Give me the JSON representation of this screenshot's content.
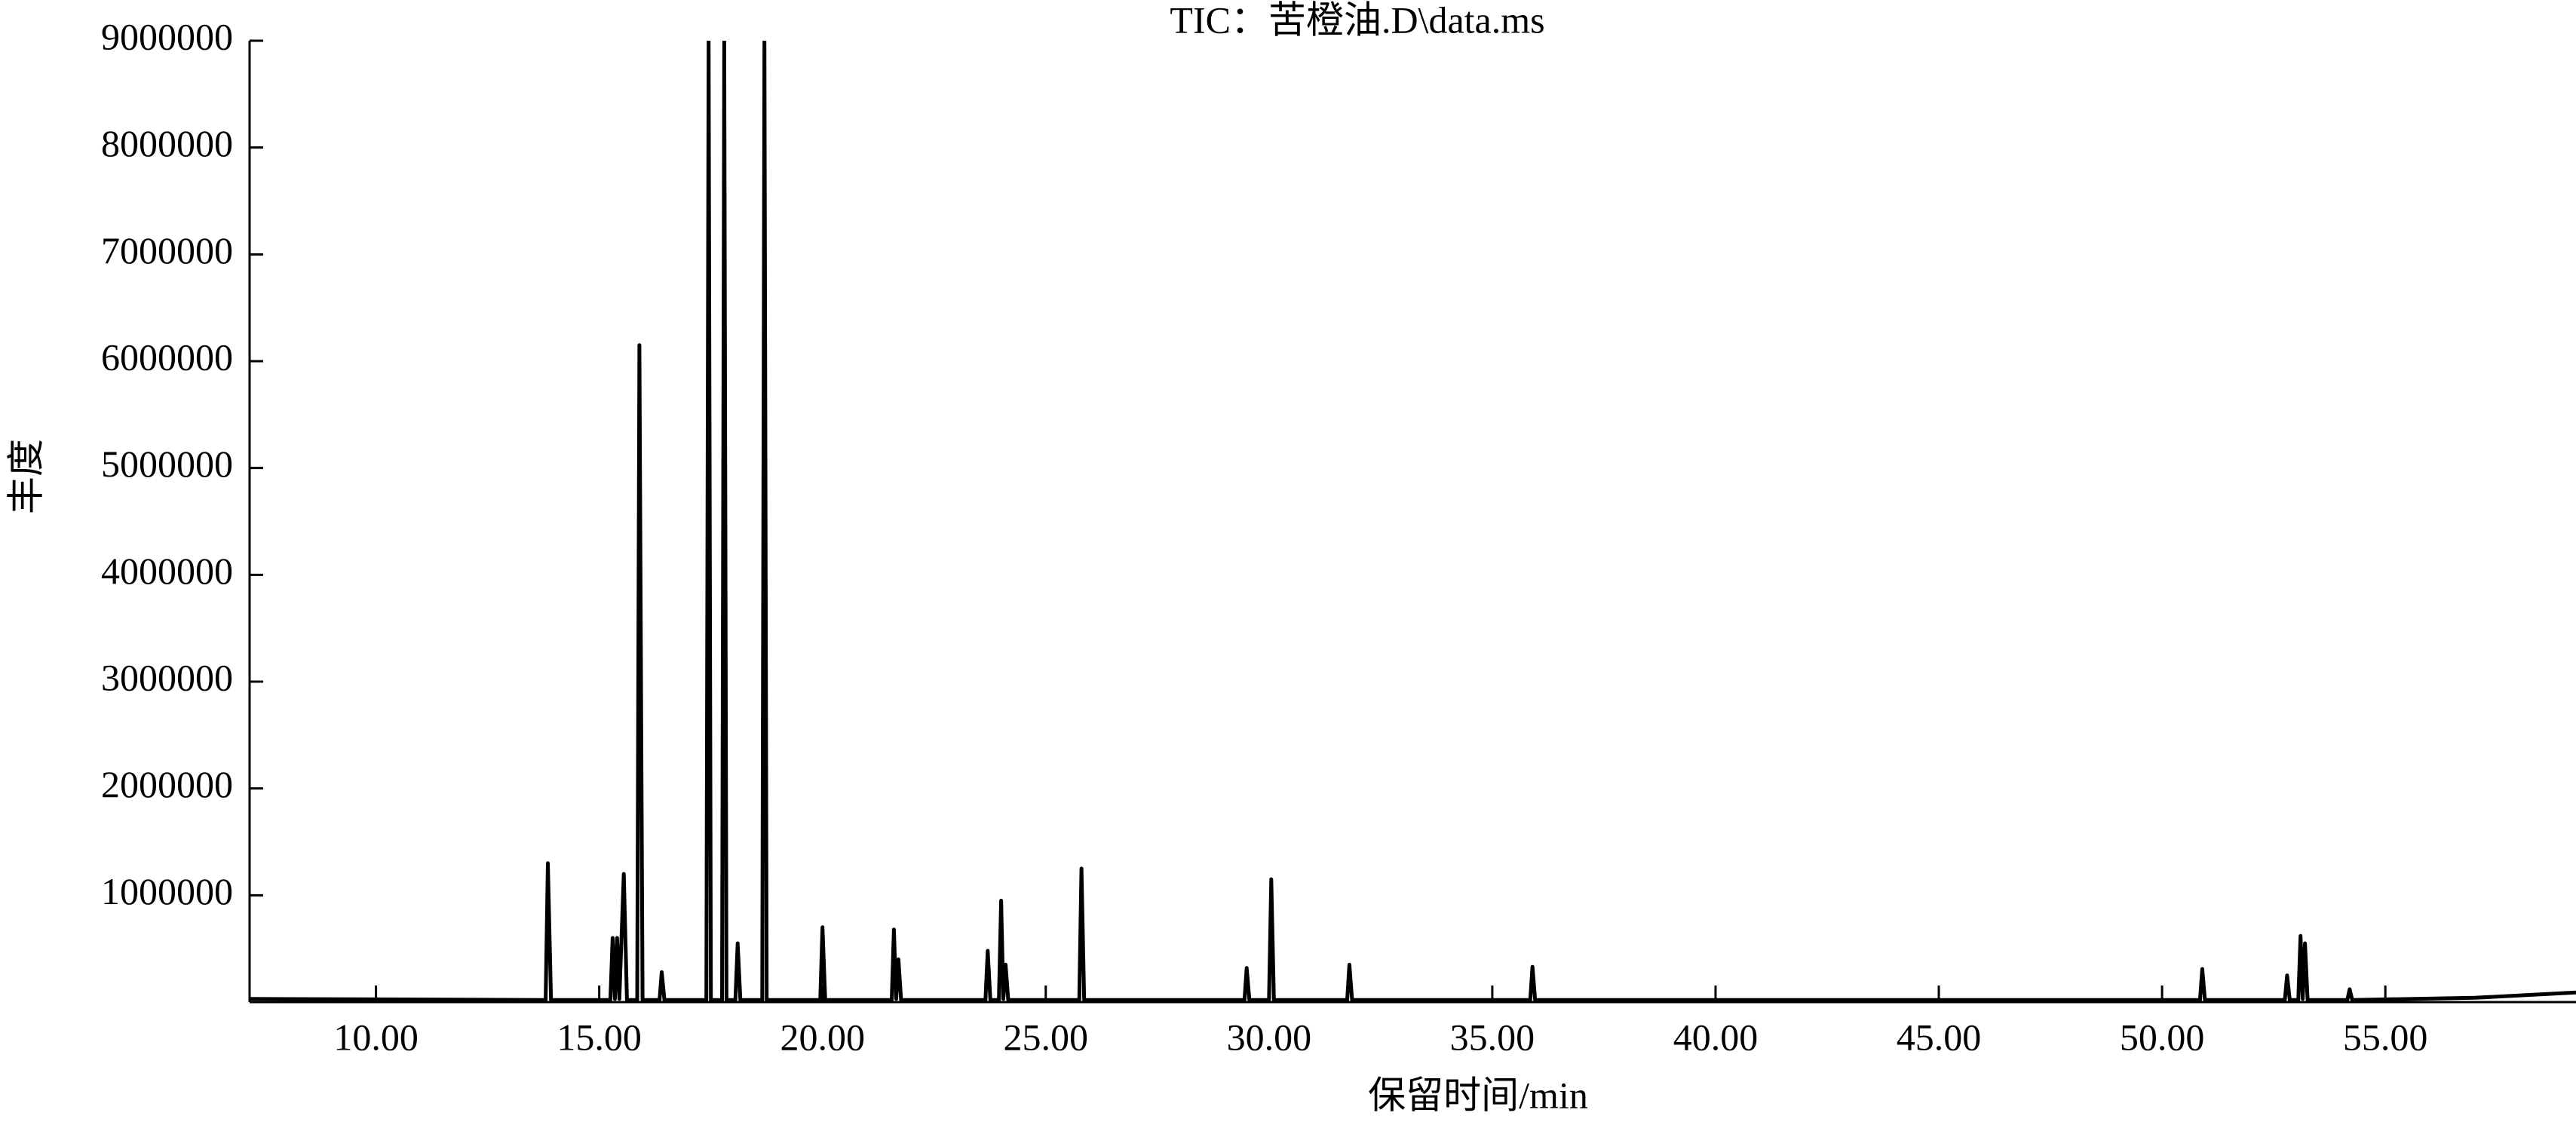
{
  "chart_data": {
    "type": "line",
    "title": "TIC：苦橙油.D\\data.ms",
    "x_label": "保留时间/min",
    "y_label": "丰度",
    "x": [
      7.17,
      13.8,
      13.85,
      13.92,
      15.25,
      15.3,
      15.35,
      15.4,
      15.45,
      15.55,
      15.62,
      15.85,
      15.9,
      15.97,
      16.35,
      16.4,
      16.46,
      17.4,
      17.45,
      17.5,
      17.75,
      17.8,
      17.85,
      18.05,
      18.1,
      18.16,
      18.65,
      18.7,
      18.75,
      19.95,
      20.0,
      20.06,
      21.55,
      21.6,
      21.65,
      21.7,
      21.76,
      23.65,
      23.7,
      23.76,
      23.95,
      24.0,
      24.05,
      24.1,
      24.16,
      25.75,
      25.8,
      25.86,
      29.45,
      29.5,
      29.56,
      30.0,
      30.05,
      30.11,
      31.75,
      31.8,
      31.86,
      35.85,
      35.9,
      35.96,
      50.85,
      50.9,
      50.96,
      52.75,
      52.8,
      52.86,
      53.05,
      53.1,
      53.15,
      53.2,
      53.26,
      54.15,
      54.2,
      54.26,
      57.0,
      59.27
    ],
    "values": [
      30000,
      20000,
      1300000,
      20000,
      20000,
      600000,
      30000,
      600000,
      30000,
      1200000,
      20000,
      20000,
      6150000,
      20000,
      20000,
      280000,
      20000,
      20000,
      9000000,
      20000,
      20000,
      9000000,
      20000,
      20000,
      550000,
      20000,
      20000,
      9000000,
      20000,
      20000,
      700000,
      20000,
      20000,
      680000,
      30000,
      400000,
      20000,
      20000,
      480000,
      20000,
      20000,
      950000,
      30000,
      350000,
      20000,
      20000,
      1250000,
      20000,
      20000,
      320000,
      20000,
      20000,
      1150000,
      20000,
      20000,
      350000,
      20000,
      20000,
      330000,
      20000,
      20000,
      310000,
      20000,
      20000,
      250000,
      20000,
      20000,
      620000,
      30000,
      550000,
      20000,
      20000,
      120000,
      20000,
      40000,
      90000
    ],
    "color": "#000000",
    "xlim": [
      7.17,
      59.27
    ],
    "ylim": [
      0,
      9000000
    ],
    "xticks": [
      {
        "value": 10,
        "label": "10.00"
      },
      {
        "value": 15,
        "label": "15.00"
      },
      {
        "value": 20,
        "label": "20.00"
      },
      {
        "value": 25,
        "label": "25.00"
      },
      {
        "value": 30,
        "label": "30.00"
      },
      {
        "value": 35,
        "label": "35.00"
      },
      {
        "value": 40,
        "label": "40.00"
      },
      {
        "value": 45,
        "label": "45.00"
      },
      {
        "value": 50,
        "label": "50.00"
      },
      {
        "value": 55,
        "label": "55.00"
      }
    ],
    "yticks": [
      1000000,
      2000000,
      3000000,
      4000000,
      5000000,
      6000000,
      7000000,
      8000000,
      9000000
    ]
  }
}
